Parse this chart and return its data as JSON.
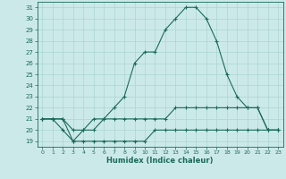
{
  "xlabel": "Humidex (Indice chaleur)",
  "xlim": [
    -0.5,
    23.5
  ],
  "ylim": [
    18.5,
    31.5
  ],
  "yticks": [
    19,
    20,
    21,
    22,
    23,
    24,
    25,
    26,
    27,
    28,
    29,
    30,
    31
  ],
  "xticks": [
    0,
    1,
    2,
    3,
    4,
    5,
    6,
    7,
    8,
    9,
    10,
    11,
    12,
    13,
    14,
    15,
    16,
    17,
    18,
    19,
    20,
    21,
    22,
    23
  ],
  "background_color": "#cce9e9",
  "grid_color": "#b0d8d8",
  "line_color": "#1a6b5a",
  "line1_x": [
    0,
    1,
    2,
    3,
    4,
    5,
    6,
    7,
    8,
    9,
    10,
    11,
    12,
    13,
    14,
    15,
    16,
    17,
    18,
    19,
    20,
    21,
    22,
    23
  ],
  "line1_y": [
    21,
    21,
    21,
    19,
    20,
    21,
    21,
    22,
    23,
    26,
    27,
    27,
    29,
    30,
    31,
    31,
    30,
    28,
    25,
    23,
    22,
    22,
    20,
    20
  ],
  "line2_x": [
    0,
    1,
    2,
    3,
    4,
    5,
    6,
    7,
    8,
    9,
    10,
    11,
    12,
    13,
    14,
    15,
    16,
    17,
    18,
    19,
    20,
    21,
    22,
    23
  ],
  "line2_y": [
    21,
    21,
    21,
    20,
    20,
    20,
    21,
    21,
    21,
    21,
    21,
    21,
    21,
    22,
    22,
    22,
    22,
    22,
    22,
    22,
    22,
    22,
    20,
    20
  ],
  "line3_x": [
    0,
    1,
    2,
    3,
    4,
    5,
    6,
    7,
    8,
    9,
    10,
    11,
    12,
    13,
    14,
    15,
    16,
    17,
    18,
    19,
    20,
    21,
    22,
    23
  ],
  "line3_y": [
    21,
    21,
    20,
    19,
    19,
    19,
    19,
    19,
    19,
    19,
    19,
    20,
    20,
    20,
    20,
    20,
    20,
    20,
    20,
    20,
    20,
    20,
    20,
    20
  ]
}
